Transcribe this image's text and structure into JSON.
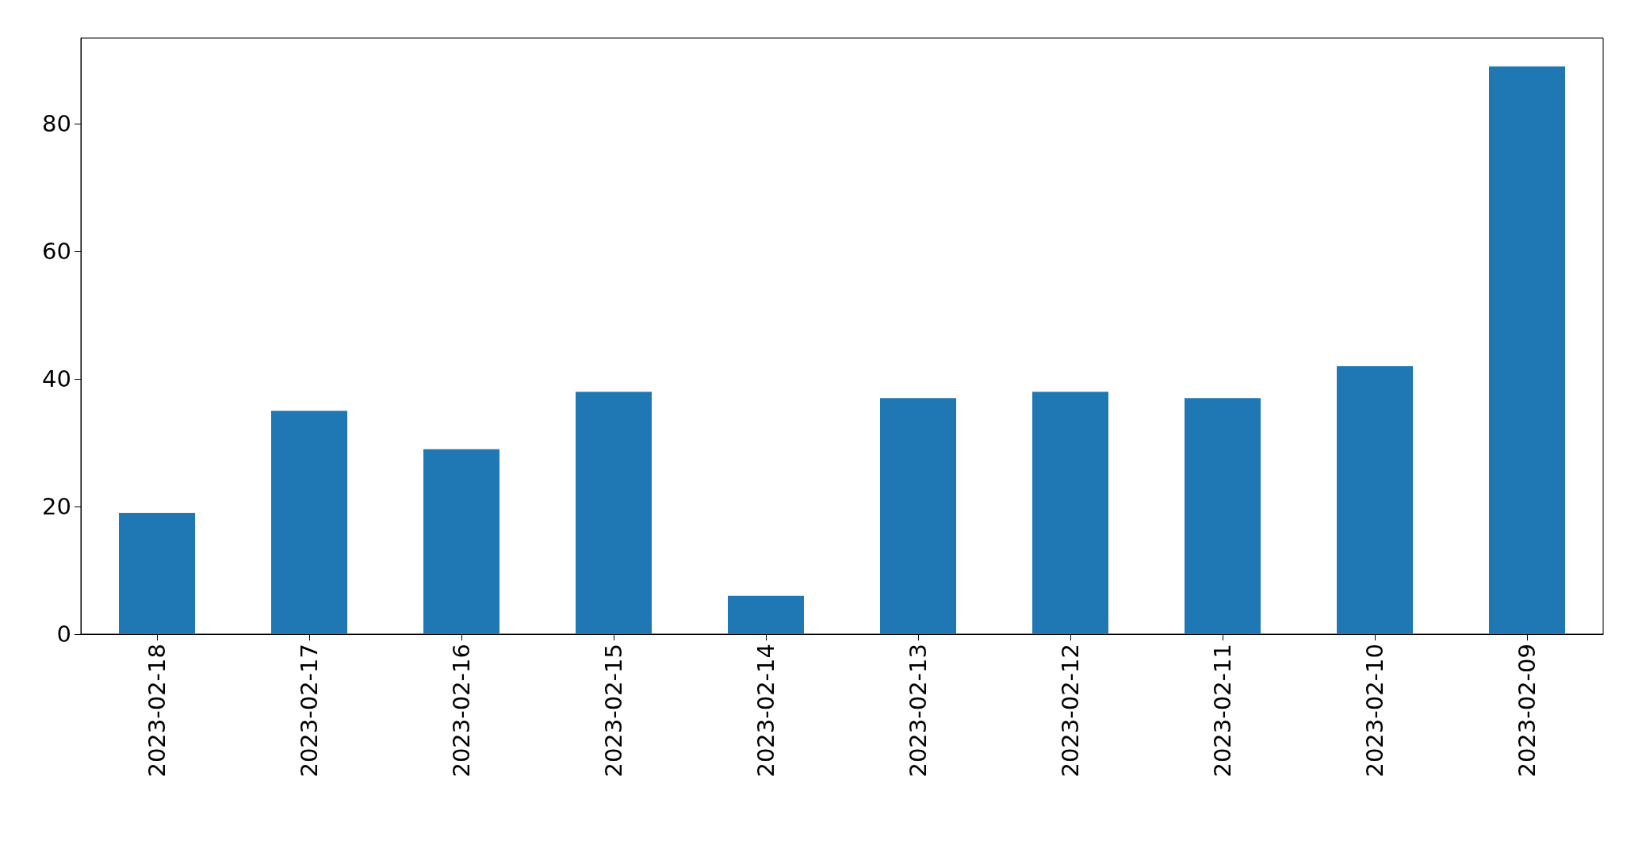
{
  "chart_data": {
    "type": "bar",
    "categories": [
      "2023-02-18",
      "2023-02-17",
      "2023-02-16",
      "2023-02-15",
      "2023-02-14",
      "2023-02-13",
      "2023-02-12",
      "2023-02-11",
      "2023-02-10",
      "2023-02-09"
    ],
    "values": [
      19,
      35,
      29,
      38,
      6,
      37,
      38,
      37,
      42,
      89
    ],
    "color": "#1f77b4",
    "ylim": [
      0,
      93.45
    ],
    "yticks": [
      0,
      20,
      40,
      60,
      80
    ],
    "grid": false
  }
}
